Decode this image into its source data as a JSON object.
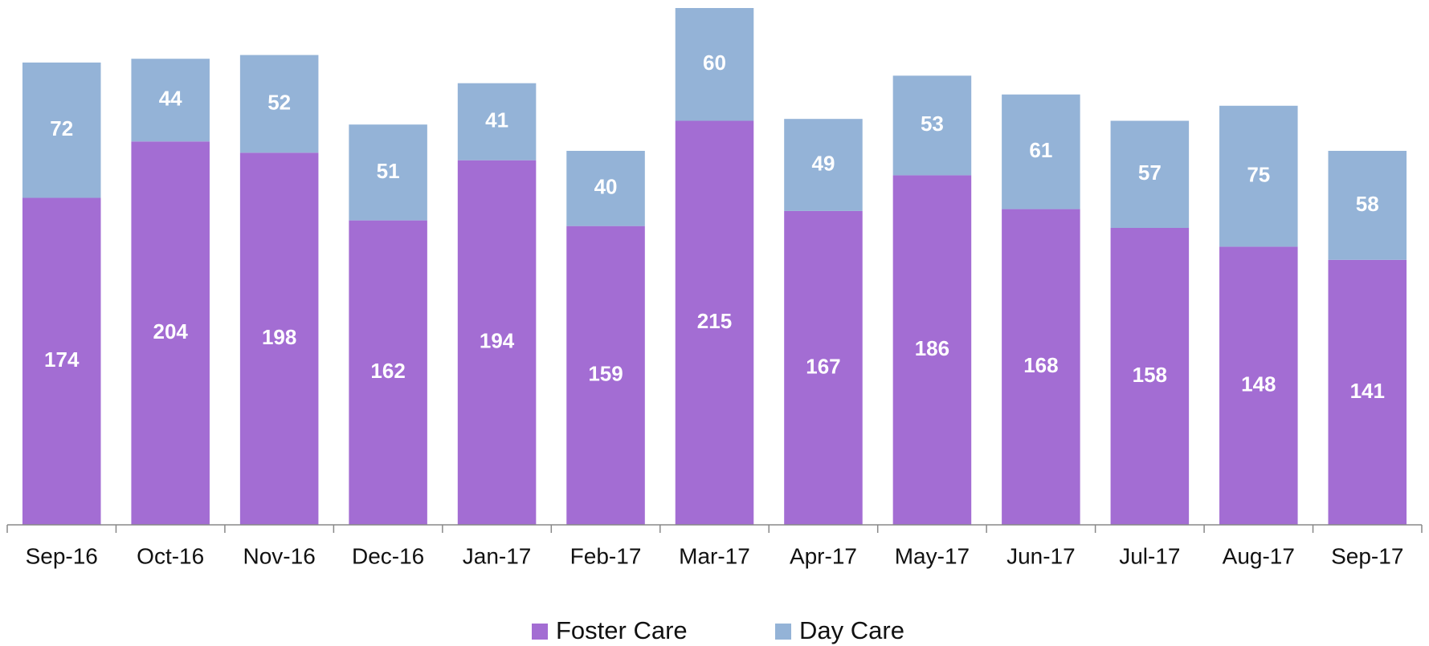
{
  "chart_data": {
    "type": "bar",
    "stacked": true,
    "categories": [
      "Sep-16",
      "Oct-16",
      "Nov-16",
      "Dec-16",
      "Jan-17",
      "Feb-17",
      "Mar-17",
      "Apr-17",
      "May-17",
      "Jun-17",
      "Jul-17",
      "Aug-17",
      "Sep-17"
    ],
    "series": [
      {
        "name": "Foster Care",
        "color": "#a36dd3",
        "values": [
          174,
          204,
          198,
          162,
          194,
          159,
          215,
          167,
          186,
          168,
          158,
          148,
          141
        ]
      },
      {
        "name": "Day Care",
        "color": "#94b3d7",
        "values": [
          72,
          44,
          52,
          51,
          41,
          40,
          60,
          49,
          53,
          61,
          57,
          75,
          58
        ]
      }
    ],
    "legend": "bottom"
  }
}
